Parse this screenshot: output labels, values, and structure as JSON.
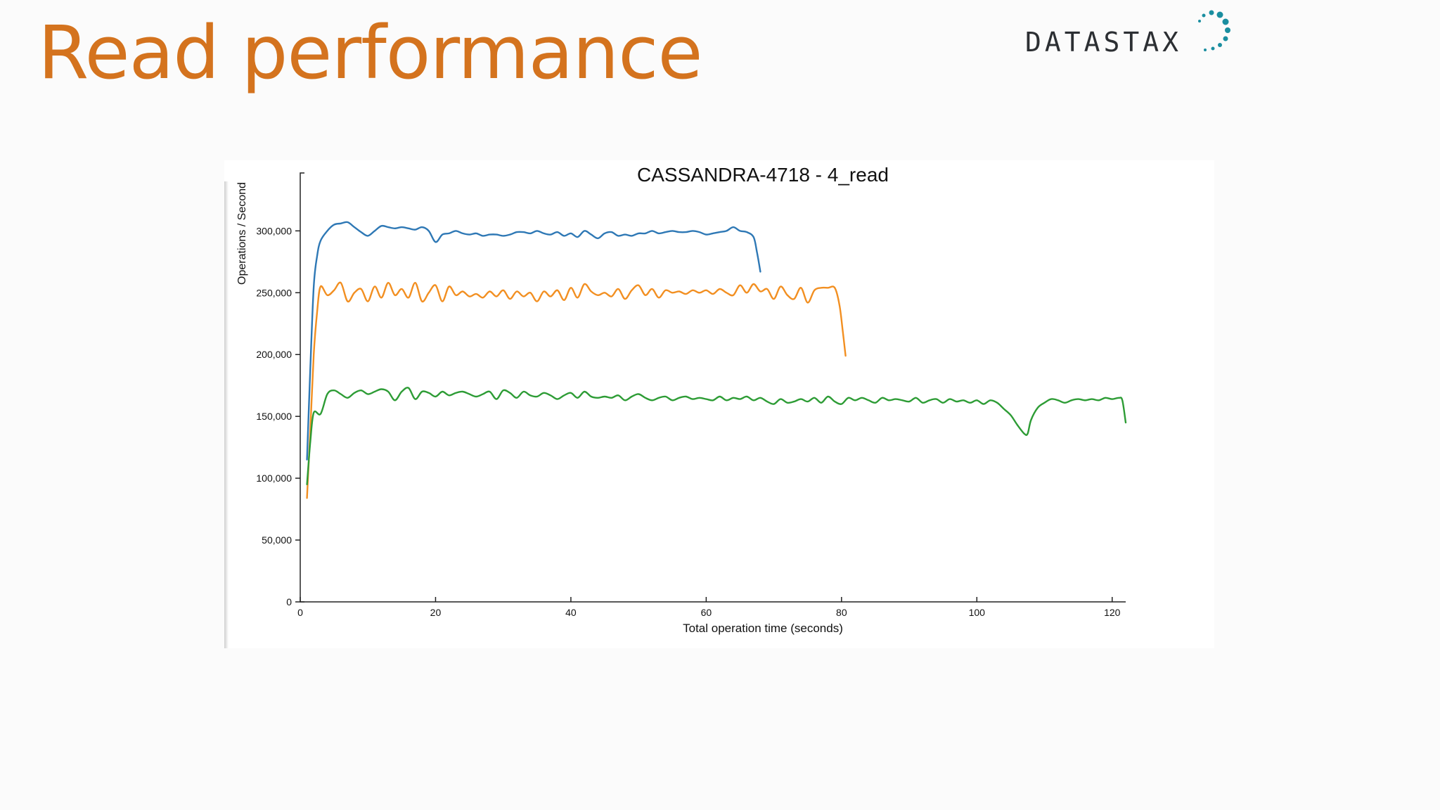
{
  "slide": {
    "title": "Read performance"
  },
  "logo": {
    "text": "DATASTAX",
    "text_color": "#2c2f33",
    "dot_color": "#1a8ea0"
  },
  "colors": {
    "title": "#d4731e",
    "series_blue": "#2e78b5",
    "series_orange": "#f28f21",
    "series_green": "#2d9c35"
  },
  "chart_data": {
    "type": "line",
    "title": "CASSANDRA-4718 - 4_read",
    "xlabel": "Total operation time (seconds)",
    "ylabel": "Operations / Second",
    "xlim": [
      0,
      122
    ],
    "ylim": [
      0,
      340000
    ],
    "x_ticks": [
      0,
      20,
      40,
      60,
      80,
      100,
      120
    ],
    "x_tick_labels": [
      "0",
      "20",
      "40",
      "60",
      "80",
      "100",
      "120"
    ],
    "y_ticks": [
      0,
      50000,
      100000,
      150000,
      200000,
      250000,
      300000
    ],
    "y_tick_labels": [
      "0",
      "50,000",
      "100,000",
      "150,000",
      "200,000",
      "250,000",
      "300,000"
    ],
    "grid": false,
    "legend": "none",
    "series": [
      {
        "color": "#2e78b5",
        "points": [
          [
            1,
            115000
          ],
          [
            1.5,
            190000
          ],
          [
            2,
            255000
          ],
          [
            2.5,
            280000
          ],
          [
            3,
            292000
          ],
          [
            4,
            300000
          ],
          [
            5,
            305000
          ],
          [
            6,
            306000
          ],
          [
            7,
            307000
          ],
          [
            8,
            303000
          ],
          [
            9,
            299000
          ],
          [
            10,
            296000
          ],
          [
            11,
            300000
          ],
          [
            12,
            304000
          ],
          [
            13,
            303000
          ],
          [
            14,
            302000
          ],
          [
            15,
            303000
          ],
          [
            16,
            302000
          ],
          [
            17,
            301000
          ],
          [
            18,
            303000
          ],
          [
            19,
            300000
          ],
          [
            20,
            291000
          ],
          [
            21,
            297000
          ],
          [
            22,
            298000
          ],
          [
            23,
            300000
          ],
          [
            24,
            298000
          ],
          [
            25,
            297000
          ],
          [
            26,
            298000
          ],
          [
            27,
            296000
          ],
          [
            28,
            297000
          ],
          [
            29,
            297000
          ],
          [
            30,
            296000
          ],
          [
            31,
            297000
          ],
          [
            32,
            299000
          ],
          [
            33,
            299000
          ],
          [
            34,
            298000
          ],
          [
            35,
            300000
          ],
          [
            36,
            298000
          ],
          [
            37,
            297000
          ],
          [
            38,
            299000
          ],
          [
            39,
            296000
          ],
          [
            40,
            298000
          ],
          [
            41,
            295000
          ],
          [
            42,
            300000
          ],
          [
            43,
            297000
          ],
          [
            44,
            294000
          ],
          [
            45,
            298000
          ],
          [
            46,
            299000
          ],
          [
            47,
            296000
          ],
          [
            48,
            297000
          ],
          [
            49,
            296000
          ],
          [
            50,
            298000
          ],
          [
            51,
            298000
          ],
          [
            52,
            300000
          ],
          [
            53,
            298000
          ],
          [
            54,
            299000
          ],
          [
            55,
            300000
          ],
          [
            56,
            299000
          ],
          [
            57,
            299000
          ],
          [
            58,
            300000
          ],
          [
            59,
            299000
          ],
          [
            60,
            297000
          ],
          [
            61,
            298000
          ],
          [
            62,
            299000
          ],
          [
            63,
            300000
          ],
          [
            64,
            303000
          ],
          [
            65,
            300000
          ],
          [
            66,
            299000
          ],
          [
            67,
            295000
          ],
          [
            67.5,
            283000
          ],
          [
            68,
            267000
          ]
        ]
      },
      {
        "color": "#f28f21",
        "points": [
          [
            1,
            84000
          ],
          [
            1.5,
            140000
          ],
          [
            2,
            200000
          ],
          [
            2.5,
            235000
          ],
          [
            3,
            255000
          ],
          [
            4,
            248000
          ],
          [
            5,
            252000
          ],
          [
            6,
            258000
          ],
          [
            7,
            243000
          ],
          [
            8,
            250000
          ],
          [
            9,
            253000
          ],
          [
            10,
            243000
          ],
          [
            11,
            255000
          ],
          [
            12,
            246000
          ],
          [
            13,
            258000
          ],
          [
            14,
            248000
          ],
          [
            15,
            253000
          ],
          [
            16,
            246000
          ],
          [
            17,
            258000
          ],
          [
            18,
            243000
          ],
          [
            19,
            250000
          ],
          [
            20,
            256000
          ],
          [
            21,
            243000
          ],
          [
            22,
            255000
          ],
          [
            23,
            248000
          ],
          [
            24,
            251000
          ],
          [
            25,
            247000
          ],
          [
            26,
            249000
          ],
          [
            27,
            246000
          ],
          [
            28,
            251000
          ],
          [
            29,
            247000
          ],
          [
            30,
            252000
          ],
          [
            31,
            245000
          ],
          [
            32,
            251000
          ],
          [
            33,
            247000
          ],
          [
            34,
            250000
          ],
          [
            35,
            243000
          ],
          [
            36,
            251000
          ],
          [
            37,
            247000
          ],
          [
            38,
            252000
          ],
          [
            39,
            244000
          ],
          [
            40,
            254000
          ],
          [
            41,
            246000
          ],
          [
            42,
            257000
          ],
          [
            43,
            251000
          ],
          [
            44,
            248000
          ],
          [
            45,
            250000
          ],
          [
            46,
            247000
          ],
          [
            47,
            253000
          ],
          [
            48,
            245000
          ],
          [
            49,
            252000
          ],
          [
            50,
            256000
          ],
          [
            51,
            248000
          ],
          [
            52,
            253000
          ],
          [
            53,
            246000
          ],
          [
            54,
            252000
          ],
          [
            55,
            250000
          ],
          [
            56,
            251000
          ],
          [
            57,
            249000
          ],
          [
            58,
            252000
          ],
          [
            59,
            250000
          ],
          [
            60,
            252000
          ],
          [
            61,
            249000
          ],
          [
            62,
            253000
          ],
          [
            63,
            250000
          ],
          [
            64,
            248000
          ],
          [
            65,
            256000
          ],
          [
            66,
            250000
          ],
          [
            67,
            257000
          ],
          [
            68,
            251000
          ],
          [
            69,
            253000
          ],
          [
            70,
            245000
          ],
          [
            71,
            255000
          ],
          [
            72,
            248000
          ],
          [
            73,
            245000
          ],
          [
            74,
            254000
          ],
          [
            75,
            242000
          ],
          [
            76,
            252000
          ],
          [
            77,
            254000
          ],
          [
            78,
            254000
          ],
          [
            79,
            254000
          ],
          [
            79.7,
            240000
          ],
          [
            80.2,
            218000
          ],
          [
            80.6,
            199000
          ]
        ]
      },
      {
        "color": "#2d9c35",
        "points": [
          [
            1,
            95000
          ],
          [
            1.5,
            130000
          ],
          [
            2,
            153000
          ],
          [
            3,
            152000
          ],
          [
            4,
            168000
          ],
          [
            5,
            171000
          ],
          [
            6,
            168000
          ],
          [
            7,
            165000
          ],
          [
            8,
            169000
          ],
          [
            9,
            171000
          ],
          [
            10,
            168000
          ],
          [
            11,
            170000
          ],
          [
            12,
            172000
          ],
          [
            13,
            170000
          ],
          [
            14,
            163000
          ],
          [
            15,
            170000
          ],
          [
            16,
            173000
          ],
          [
            17,
            164000
          ],
          [
            18,
            170000
          ],
          [
            19,
            169000
          ],
          [
            20,
            166000
          ],
          [
            21,
            170000
          ],
          [
            22,
            167000
          ],
          [
            23,
            169000
          ],
          [
            24,
            170000
          ],
          [
            25,
            168000
          ],
          [
            26,
            166000
          ],
          [
            27,
            168000
          ],
          [
            28,
            170000
          ],
          [
            29,
            164000
          ],
          [
            30,
            171000
          ],
          [
            31,
            169000
          ],
          [
            32,
            165000
          ],
          [
            33,
            170000
          ],
          [
            34,
            167000
          ],
          [
            35,
            166000
          ],
          [
            36,
            169000
          ],
          [
            37,
            167000
          ],
          [
            38,
            164000
          ],
          [
            39,
            167000
          ],
          [
            40,
            169000
          ],
          [
            41,
            165000
          ],
          [
            42,
            170000
          ],
          [
            43,
            166000
          ],
          [
            44,
            165000
          ],
          [
            45,
            166000
          ],
          [
            46,
            165000
          ],
          [
            47,
            167000
          ],
          [
            48,
            163000
          ],
          [
            49,
            166000
          ],
          [
            50,
            168000
          ],
          [
            51,
            165000
          ],
          [
            52,
            163000
          ],
          [
            53,
            165000
          ],
          [
            54,
            166000
          ],
          [
            55,
            163000
          ],
          [
            56,
            165000
          ],
          [
            57,
            166000
          ],
          [
            58,
            164000
          ],
          [
            59,
            165000
          ],
          [
            60,
            164000
          ],
          [
            61,
            163000
          ],
          [
            62,
            166000
          ],
          [
            63,
            163000
          ],
          [
            64,
            165000
          ],
          [
            65,
            164000
          ],
          [
            66,
            166000
          ],
          [
            67,
            163000
          ],
          [
            68,
            165000
          ],
          [
            69,
            162000
          ],
          [
            70,
            160000
          ],
          [
            71,
            164000
          ],
          [
            72,
            161000
          ],
          [
            73,
            162000
          ],
          [
            74,
            164000
          ],
          [
            75,
            162000
          ],
          [
            76,
            165000
          ],
          [
            77,
            161000
          ],
          [
            78,
            166000
          ],
          [
            79,
            162000
          ],
          [
            80,
            160000
          ],
          [
            81,
            165000
          ],
          [
            82,
            163000
          ],
          [
            83,
            165000
          ],
          [
            84,
            163000
          ],
          [
            85,
            161000
          ],
          [
            86,
            165000
          ],
          [
            87,
            163000
          ],
          [
            88,
            164000
          ],
          [
            89,
            163000
          ],
          [
            90,
            162000
          ],
          [
            91,
            165000
          ],
          [
            92,
            161000
          ],
          [
            93,
            163000
          ],
          [
            94,
            164000
          ],
          [
            95,
            161000
          ],
          [
            96,
            164000
          ],
          [
            97,
            162000
          ],
          [
            98,
            163000
          ],
          [
            99,
            161000
          ],
          [
            100,
            163000
          ],
          [
            101,
            160000
          ],
          [
            102,
            163000
          ],
          [
            103,
            161000
          ],
          [
            104,
            156000
          ],
          [
            105,
            151000
          ],
          [
            106,
            143000
          ],
          [
            107,
            136000
          ],
          [
            107.5,
            136000
          ],
          [
            108,
            147000
          ],
          [
            109,
            157000
          ],
          [
            110,
            161000
          ],
          [
            111,
            164000
          ],
          [
            112,
            163000
          ],
          [
            113,
            161000
          ],
          [
            114,
            163000
          ],
          [
            115,
            164000
          ],
          [
            116,
            163000
          ],
          [
            117,
            164000
          ],
          [
            118,
            163000
          ],
          [
            119,
            165000
          ],
          [
            120,
            164000
          ],
          [
            121,
            165000
          ],
          [
            121.5,
            163000
          ],
          [
            122,
            145000
          ]
        ]
      }
    ]
  }
}
